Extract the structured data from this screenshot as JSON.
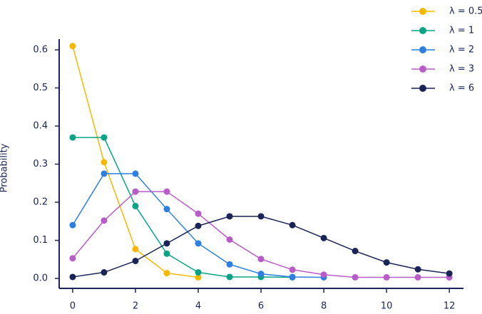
{
  "chart_data": {
    "type": "line",
    "y_label": "Probability",
    "x": [
      0,
      1,
      2,
      3,
      4,
      5,
      6,
      7,
      8,
      9,
      10,
      11,
      12
    ],
    "series": [
      {
        "name": "λ = 0.5",
        "color": "#f5b800",
        "values": [
          0.61,
          0.305,
          0.077,
          0.014,
          0.003,
          null,
          null,
          null,
          null,
          null,
          null,
          null,
          null
        ]
      },
      {
        "name": "λ = 1",
        "color": "#0aa386",
        "values": [
          0.37,
          0.37,
          0.19,
          0.065,
          0.016,
          0.004,
          0.004,
          0.003,
          null,
          null,
          null,
          null,
          null
        ]
      },
      {
        "name": "λ = 2",
        "color": "#2f7fe0",
        "values": [
          0.14,
          0.275,
          0.275,
          0.182,
          0.092,
          0.037,
          0.012,
          0.004,
          0.003,
          null,
          null,
          null,
          null
        ]
      },
      {
        "name": "λ = 3",
        "color": "#b85cc8",
        "values": [
          0.053,
          0.152,
          0.228,
          0.228,
          0.17,
          0.102,
          0.051,
          0.023,
          0.01,
          0.003,
          0.003,
          0.003,
          0.003
        ]
      },
      {
        "name": "λ = 6",
        "color": "#1a2456",
        "values": [
          0.004,
          0.016,
          0.046,
          0.092,
          0.138,
          0.163,
          0.163,
          0.14,
          0.106,
          0.072,
          0.042,
          0.024,
          0.013
        ]
      }
    ],
    "xlim": [
      -0.43,
      12.45
    ],
    "ylim": [
      -0.026,
      0.628
    ],
    "xticks": [
      0,
      2,
      4,
      6,
      8,
      10,
      12
    ],
    "yticks": [
      {
        "value": 0,
        "label": "0.0"
      },
      0.1,
      0.2,
      0.3,
      0.4,
      0.5,
      0.6
    ],
    "legend": "upper right"
  }
}
